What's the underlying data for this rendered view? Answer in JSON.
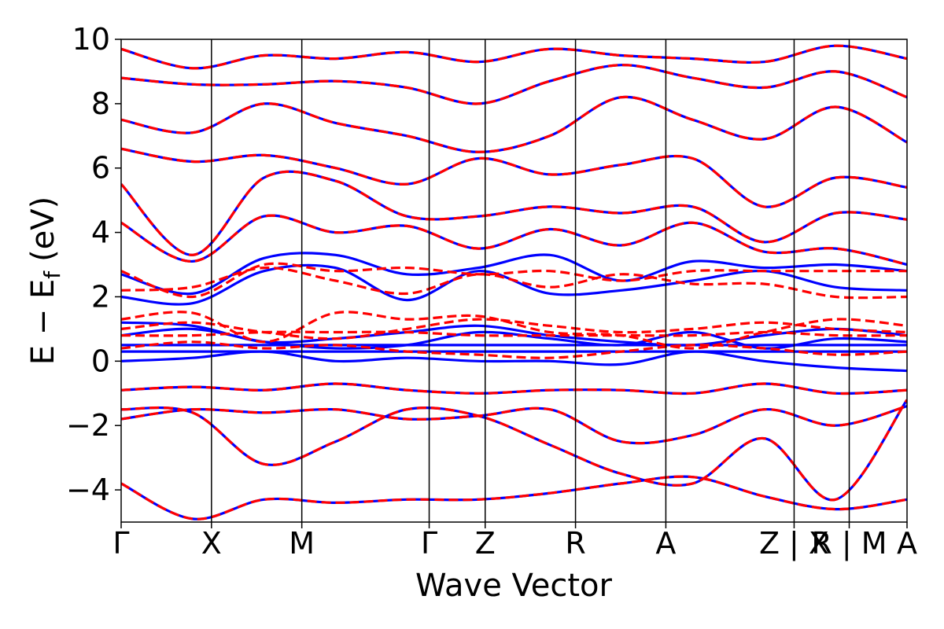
{
  "chart_data": {
    "type": "line",
    "xlabel": "Wave Vector",
    "ylabel": "E − E_f (eV)",
    "ylabel_parts": {
      "main": "E − E",
      "sub": "f",
      "unit": "(eV)"
    },
    "ylim": [
      -5,
      10
    ],
    "y_ticks": [
      -4,
      -2,
      0,
      2,
      4,
      6,
      8,
      10
    ],
    "y_tick_labels": [
      "−4",
      "−2",
      "0",
      "2",
      "4",
      "6",
      "8",
      "10"
    ],
    "xlim": [
      0,
      8.7
    ],
    "high_symmetry_points": [
      {
        "label": "Γ",
        "x": 0
      },
      {
        "label": "X",
        "x": 1.0
      },
      {
        "label": "M",
        "x": 2.0
      },
      {
        "label": "Γ",
        "x": 3.41
      },
      {
        "label": "Z",
        "x": 4.03
      },
      {
        "label": "R",
        "x": 5.03
      },
      {
        "label": "A",
        "x": 6.03
      },
      {
        "label": "Z",
        "x": 7.45
      },
      {
        "label": "X",
        "x": 8.06
      },
      {
        "label": "R",
        "x": 8.06
      },
      {
        "label": "M",
        "x": 8.7
      },
      {
        "label": "A",
        "x": 8.7
      }
    ],
    "x_tick_labels": [
      "Γ",
      "X",
      "M",
      "Γ",
      "Z",
      "R",
      "A",
      "Z | X",
      "R | M",
      "A"
    ],
    "grid": false,
    "legend": null,
    "colors": {
      "series_a": "#0000ff",
      "series_b": "#ff0000"
    },
    "series": [
      {
        "style": "solid",
        "color": "#0000ff",
        "bands": [
          [
            -3.8,
            -4.9,
            -4.3,
            -4.4,
            -4.3,
            -4.3,
            -4.1,
            -3.8,
            -3.6,
            -4.2,
            -4.6,
            -4.3
          ],
          [
            -1.5,
            -1.6,
            -3.2,
            -2.5,
            -1.5,
            -1.7,
            -2.6,
            -3.5,
            -3.8,
            -2.4,
            -4.3,
            -1.2
          ],
          [
            -1.8,
            -1.5,
            -1.6,
            -1.5,
            -1.8,
            -1.7,
            -1.5,
            -2.5,
            -2.3,
            -1.5,
            -2.0,
            -1.4
          ],
          [
            -0.9,
            -0.8,
            -0.9,
            -0.7,
            -0.9,
            -1.0,
            -0.9,
            -0.9,
            -1.0,
            -0.7,
            -1.0,
            -0.9
          ],
          [
            0.0,
            0.1,
            0.3,
            0.0,
            0.1,
            0.0,
            0.0,
            -0.1,
            0.3,
            0.0,
            -0.2,
            -0.3
          ],
          [
            0.3,
            0.3,
            0.3,
            0.3,
            0.3,
            0.3,
            0.3,
            0.3,
            0.3,
            0.3,
            0.3,
            0.3
          ],
          [
            0.5,
            0.5,
            0.5,
            0.5,
            0.5,
            0.5,
            0.5,
            0.5,
            0.5,
            0.5,
            0.5,
            0.5
          ],
          [
            0.8,
            1.0,
            0.6,
            0.4,
            0.5,
            0.9,
            0.7,
            0.5,
            0.9,
            0.4,
            0.7,
            0.6
          ],
          [
            1.2,
            1.1,
            0.6,
            0.7,
            0.9,
            1.1,
            0.8,
            0.6,
            0.5,
            0.8,
            1.0,
            0.8
          ],
          [
            2.0,
            1.8,
            2.8,
            2.9,
            1.9,
            2.8,
            2.1,
            2.2,
            2.5,
            2.8,
            2.3,
            2.2
          ],
          [
            2.7,
            2.1,
            3.2,
            3.3,
            2.7,
            2.9,
            3.3,
            2.5,
            3.1,
            2.9,
            3.0,
            2.8
          ],
          [
            4.3,
            3.1,
            4.5,
            4.0,
            4.2,
            3.5,
            4.1,
            3.6,
            4.3,
            3.4,
            3.5,
            3.0
          ],
          [
            5.5,
            3.3,
            5.7,
            5.6,
            4.5,
            4.5,
            4.8,
            4.6,
            4.8,
            3.7,
            4.6,
            4.4
          ],
          [
            6.6,
            6.2,
            6.4,
            6.0,
            5.5,
            6.3,
            5.8,
            6.1,
            6.3,
            4.8,
            5.7,
            5.4
          ],
          [
            7.5,
            7.1,
            8.0,
            7.4,
            7.0,
            6.5,
            7.0,
            8.2,
            7.5,
            6.9,
            7.9,
            6.8
          ],
          [
            8.8,
            8.6,
            8.6,
            8.7,
            8.5,
            8.0,
            8.7,
            9.2,
            8.8,
            8.5,
            9.0,
            8.2
          ],
          [
            9.7,
            9.1,
            9.5,
            9.4,
            9.6,
            9.3,
            9.7,
            9.5,
            9.4,
            9.3,
            9.8,
            9.4
          ]
        ]
      },
      {
        "style": "dashed",
        "color": "#ff0000",
        "bands": [
          [
            -3.8,
            -4.9,
            -4.3,
            -4.4,
            -4.3,
            -4.3,
            -4.1,
            -3.8,
            -3.6,
            -4.2,
            -4.6,
            -4.3
          ],
          [
            -1.5,
            -1.6,
            -3.2,
            -2.5,
            -1.5,
            -1.7,
            -2.6,
            -3.5,
            -3.8,
            -2.4,
            -4.3,
            -1.2
          ],
          [
            -1.8,
            -1.5,
            -1.6,
            -1.5,
            -1.8,
            -1.7,
            -1.5,
            -2.5,
            -2.3,
            -1.5,
            -2.0,
            -1.4
          ],
          [
            -0.9,
            -0.8,
            -0.9,
            -0.7,
            -0.9,
            -1.0,
            -0.9,
            -0.9,
            -1.0,
            -0.7,
            -1.0,
            -0.9
          ],
          [
            0.4,
            0.6,
            0.4,
            0.5,
            0.3,
            0.2,
            0.1,
            0.3,
            0.5,
            0.4,
            0.2,
            0.3
          ],
          [
            0.8,
            0.8,
            0.9,
            0.9,
            0.9,
            0.8,
            0.8,
            0.8,
            0.8,
            0.9,
            0.8,
            0.8
          ],
          [
            1.0,
            1.2,
            0.9,
            0.7,
            1.0,
            1.3,
            1.1,
            0.9,
            1.0,
            1.2,
            1.0,
            0.9
          ],
          [
            1.3,
            1.5,
            0.6,
            1.5,
            1.3,
            1.4,
            0.9,
            0.8,
            0.4,
            0.9,
            1.3,
            1.1
          ],
          [
            2.2,
            2.3,
            2.9,
            2.5,
            2.1,
            2.7,
            2.3,
            2.7,
            2.4,
            2.4,
            2.0,
            2.0
          ],
          [
            2.8,
            2.0,
            3.0,
            2.8,
            2.9,
            2.7,
            2.8,
            2.5,
            2.8,
            2.8,
            2.8,
            2.8
          ],
          [
            4.3,
            3.1,
            4.5,
            4.0,
            4.2,
            3.5,
            4.1,
            3.6,
            4.3,
            3.4,
            3.5,
            3.0
          ],
          [
            5.5,
            3.3,
            5.7,
            5.6,
            4.5,
            4.5,
            4.8,
            4.6,
            4.8,
            3.7,
            4.6,
            4.4
          ],
          [
            6.6,
            6.2,
            6.4,
            6.0,
            5.5,
            6.3,
            5.8,
            6.1,
            6.3,
            4.8,
            5.7,
            5.4
          ],
          [
            7.5,
            7.1,
            8.0,
            7.4,
            7.0,
            6.5,
            7.0,
            8.2,
            7.5,
            6.9,
            7.9,
            6.8
          ],
          [
            8.8,
            8.6,
            8.6,
            8.7,
            8.5,
            8.0,
            8.7,
            9.2,
            8.8,
            8.5,
            9.0,
            8.2
          ],
          [
            9.7,
            9.1,
            9.5,
            9.4,
            9.6,
            9.3,
            9.7,
            9.5,
            9.4,
            9.3,
            9.8,
            9.4
          ]
        ]
      }
    ]
  }
}
